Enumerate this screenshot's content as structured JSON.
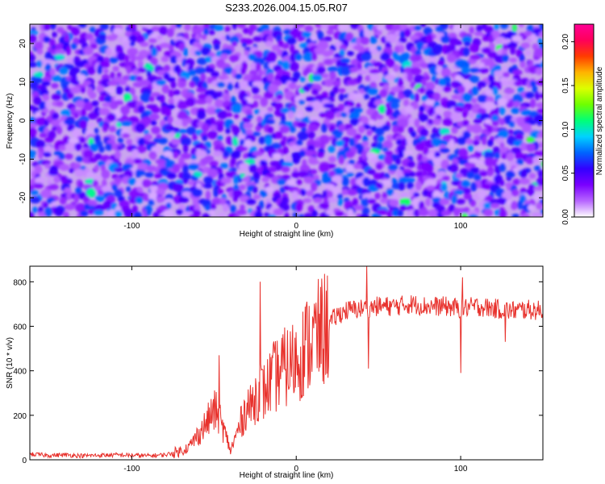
{
  "chart_data": [
    {
      "type": "heatmap",
      "title": "S233.2026.004.15.05.R07",
      "xlabel": "Height of straight line (km)",
      "ylabel": "Frequency (Hz)",
      "xlim": [
        -162,
        150
      ],
      "ylim": [
        -25,
        25
      ],
      "xticks": [
        -100,
        0,
        100
      ],
      "xtick_labels": [
        "-100",
        "0",
        "100"
      ],
      "yticks": [
        -20,
        -10,
        0,
        10,
        20
      ],
      "ytick_labels": [
        "-20",
        "-10",
        "0",
        "10",
        "20"
      ],
      "colorbar": {
        "label": "Normalized spectral amplitude",
        "range": [
          0,
          0.22
        ],
        "ticks": [
          0,
          0.05,
          0.1,
          0.15,
          0.2
        ],
        "tick_labels": [
          "0.00",
          "0.05",
          "0.10",
          "0.15",
          "0.20"
        ],
        "colors": [
          "#ffffff",
          "#b766ff",
          "#7a00ff",
          "#3300ff",
          "#0064ff",
          "#00d2ff",
          "#00ff78",
          "#6eff00",
          "#dcff00",
          "#ffb400",
          "#ff3c00",
          "#ff005a",
          "#ff0096"
        ]
      },
      "background_level": 0.01,
      "typical_amplitude": [
        0.02,
        0.08
      ],
      "peak_amplitude": 0.12
    },
    {
      "type": "line",
      "xlabel": "Height of straight line (km)",
      "ylabel": "SNR (10 * v/v)",
      "xlim": [
        -162,
        150
      ],
      "ylim": [
        0,
        870
      ],
      "xticks": [
        -100,
        0,
        100
      ],
      "xtick_labels": [
        "-100",
        "0",
        "100"
      ],
      "yticks": [
        0,
        200,
        400,
        600,
        800
      ],
      "ytick_labels": [
        "0",
        "200",
        "400",
        "600",
        "800"
      ],
      "line_color": "#e8322d",
      "series": [
        {
          "name": "SNR",
          "x": [
            -162,
            -150,
            -140,
            -130,
            -120,
            -110,
            -100,
            -90,
            -80,
            -75,
            -70,
            -65,
            -60,
            -55,
            -50,
            -47,
            -45,
            -42,
            -40,
            -38,
            -35,
            -32,
            -30,
            -28,
            -25,
            -22,
            -20,
            -18,
            -15,
            -12,
            -10,
            -5,
            0,
            5,
            10,
            15,
            20,
            25,
            30,
            40,
            50,
            60,
            70,
            80,
            90,
            100,
            110,
            120,
            130,
            140,
            150
          ],
          "values": [
            25,
            20,
            22,
            18,
            20,
            22,
            20,
            18,
            22,
            30,
            40,
            60,
            110,
            160,
            220,
            200,
            150,
            90,
            40,
            80,
            140,
            200,
            250,
            230,
            280,
            330,
            300,
            320,
            360,
            380,
            400,
            420,
            450,
            500,
            540,
            570,
            610,
            650,
            670,
            680,
            690,
            690,
            700,
            690,
            690,
            680,
            690,
            680,
            670,
            675,
            670
          ],
          "spikes": [
            {
              "x": -47,
              "value": 470
            },
            {
              "x": -22,
              "value": 800
            },
            {
              "x": 43,
              "value": 870
            },
            {
              "x": 44,
              "value": 410
            },
            {
              "x": 100,
              "value": 390
            },
            {
              "x": 101,
              "value": 820
            },
            {
              "x": 127,
              "value": 530
            }
          ]
        }
      ]
    }
  ]
}
